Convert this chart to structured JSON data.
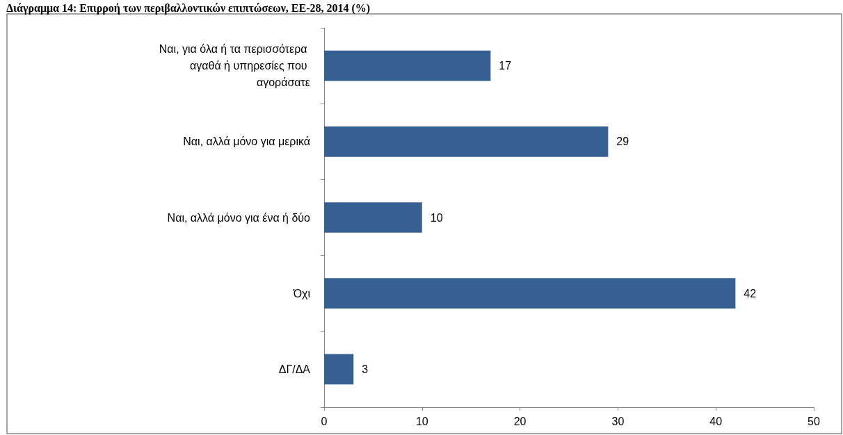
{
  "chart_data": {
    "type": "bar",
    "orientation": "horizontal",
    "title": "Διάγραμμα 14: Επιρροή των περιβαλλοντικών επιπτώσεων, ΕΕ-28, 2014 (%)",
    "categories": [
      "Ναι, για όλα ή τα περισσότερα αγαθά ή υπηρεσίες που αγοράσατε",
      "Ναι, αλλά μόνο για μερικά",
      "Ναι, αλλά μόνο για ένα ή δύο",
      "Όχι",
      "ΔΓ/ΔΑ"
    ],
    "values": [
      17,
      29,
      10,
      42,
      3
    ],
    "color": "#376092",
    "data_labels": true,
    "xlim": [
      0,
      50
    ],
    "xticks": [
      0,
      10,
      20,
      30,
      40,
      50
    ],
    "grid": false
  }
}
